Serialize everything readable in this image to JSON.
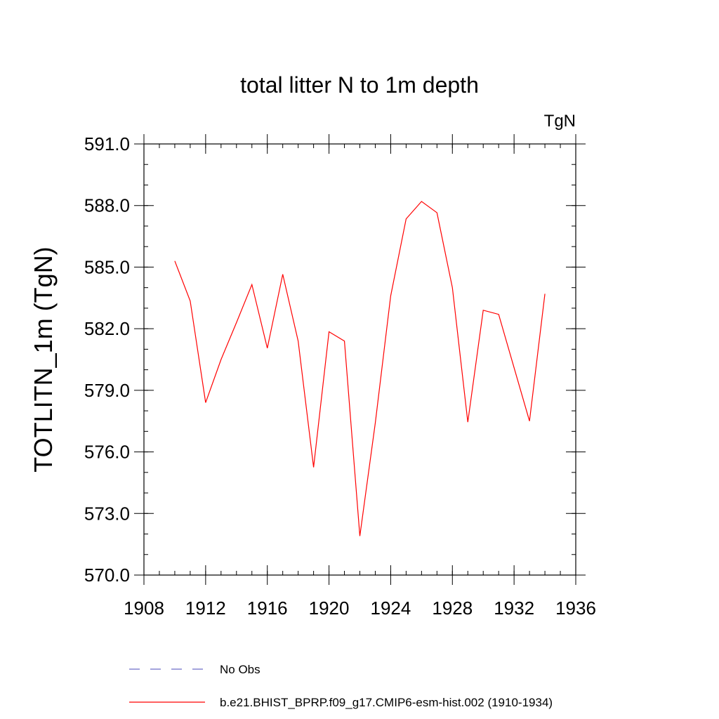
{
  "chart_data": {
    "type": "line",
    "title": "total litter N to 1m depth",
    "units_label": "TgN",
    "xlabel": "",
    "ylabel": "TOTLITN_1m  (TgN)",
    "xlim": [
      1908,
      1936
    ],
    "ylim": [
      570,
      591
    ],
    "x_ticks": [
      1908,
      1912,
      1916,
      1920,
      1924,
      1928,
      1932,
      1936
    ],
    "x_tick_labels": [
      "1908",
      "1912",
      "1916",
      "1920",
      "1924",
      "1928",
      "1932",
      "1936"
    ],
    "y_ticks": [
      570,
      573,
      576,
      579,
      582,
      585,
      588,
      591
    ],
    "y_tick_labels": [
      "570.0",
      "573.0",
      "576.0",
      "579.0",
      "582.0",
      "585.0",
      "588.0",
      "591.0"
    ],
    "series": [
      {
        "name": "b.e21.BHIST_BPRP.f09_g17.CMIP6-esm-hist.002 (1910-1934)",
        "color": "#ff0000",
        "style": "solid",
        "x": [
          1910,
          1911,
          1912,
          1913,
          1914,
          1915,
          1916,
          1917,
          1918,
          1919,
          1920,
          1921,
          1922,
          1923,
          1924,
          1925,
          1926,
          1927,
          1928,
          1929,
          1930,
          1931,
          1932,
          1933,
          1934
        ],
        "values": [
          585.3,
          583.35,
          578.4,
          580.5,
          582.3,
          584.15,
          581.05,
          584.65,
          581.4,
          575.25,
          581.85,
          581.4,
          571.9,
          577.4,
          583.6,
          587.35,
          588.2,
          587.65,
          584.0,
          577.45,
          582.9,
          582.7,
          580.1,
          577.5,
          583.7
        ]
      }
    ],
    "legend": [
      {
        "label": "No Obs",
        "color": "#6e6ec8",
        "style": "dashed"
      },
      {
        "label": "b.e21.BHIST_BPRP.f09_g17.CMIP6-esm-hist.002 (1910-1934)",
        "color": "#ff0000",
        "style": "solid"
      }
    ],
    "legend_position": "bottom",
    "grid": false
  }
}
